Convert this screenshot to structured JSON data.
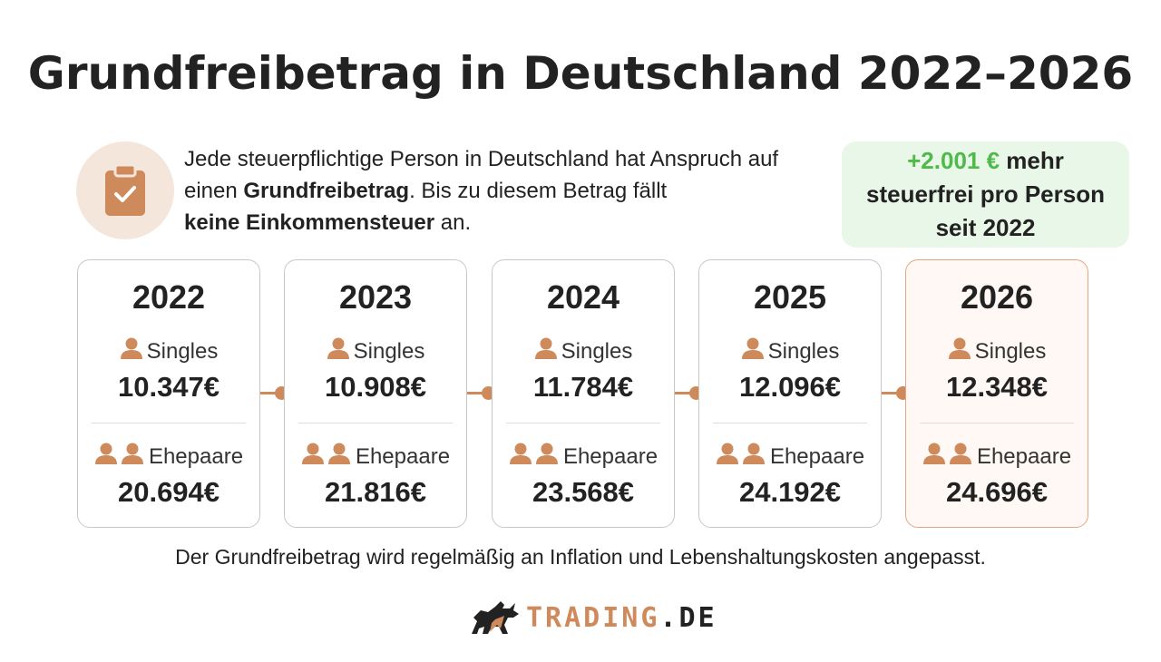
{
  "title": "Grundfreibetrag in Deutschland 2022–2026",
  "intro": {
    "icon": "clipboard-check-icon",
    "part1": "Jede steuerpflichtige Person in Deutschland hat Anspruch auf einen ",
    "bold1": "Grundfreibetrag",
    "part2": ". Bis zu diesem Betrag fällt ",
    "bold2": "keine Einkommensteuer",
    "part3": " an."
  },
  "badge": {
    "highlight": "+2.001 €",
    "line1_rest": " mehr",
    "line2": "steuerfrei pro Person",
    "line3": "seit 2022"
  },
  "labels": {
    "single": "Singles",
    "couple": "Ehepaare"
  },
  "years": [
    {
      "year": "2022",
      "single": "10.347€",
      "couple": "20.694€"
    },
    {
      "year": "2023",
      "single": "10.908€",
      "couple": "21.816€"
    },
    {
      "year": "2024",
      "single": "11.784€",
      "couple": "23.568€"
    },
    {
      "year": "2025",
      "single": "12.096€",
      "couple": "24.192€"
    },
    {
      "year": "2026",
      "single": "12.348€",
      "couple": "24.696€"
    }
  ],
  "footnote": "Der Grundfreibetrag wird regelmäßig an Inflation und Lebenshaltungskosten angepasst.",
  "logo": {
    "icon": "bull-icon",
    "part1": "TRADING",
    "part2": ".DE"
  },
  "colors": {
    "accent": "#cf8a5c",
    "green": "#4fb94a",
    "badge_bg": "#e9f7e8",
    "icon_bg": "#f5e6dc"
  }
}
